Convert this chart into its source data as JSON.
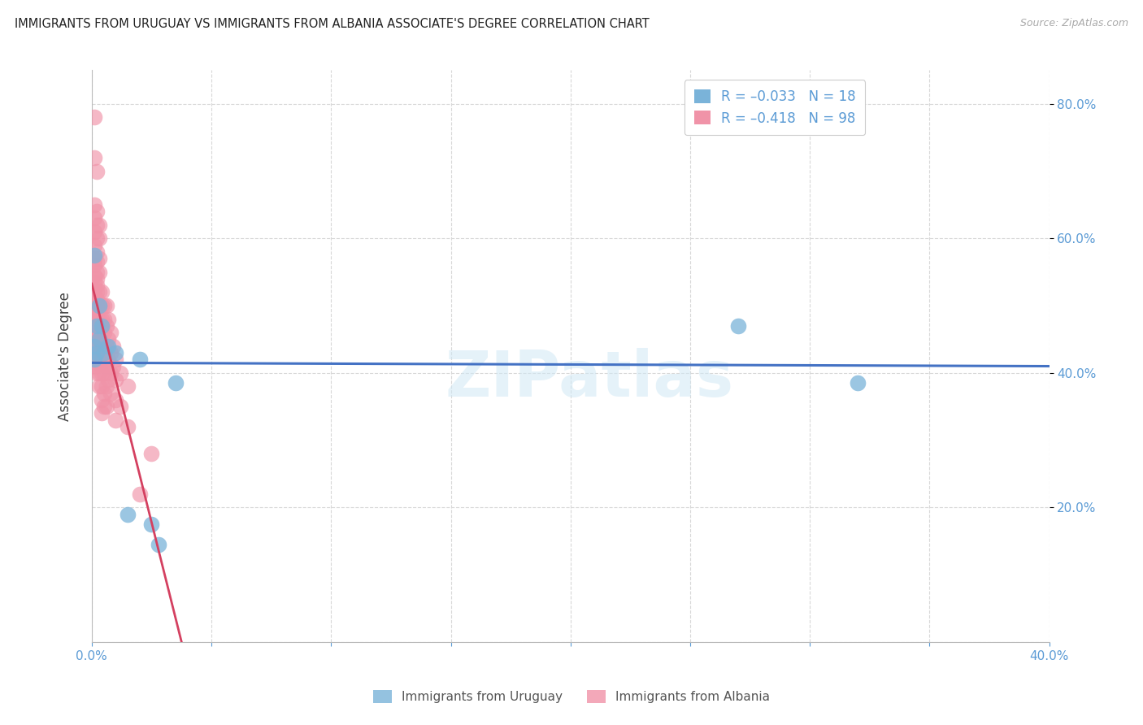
{
  "title": "IMMIGRANTS FROM URUGUAY VS IMMIGRANTS FROM ALBANIA ASSOCIATE'S DEGREE CORRELATION CHART",
  "source": "Source: ZipAtlas.com",
  "ylabel": "Associate's Degree",
  "xlim": [
    0.0,
    0.4
  ],
  "ylim": [
    0.0,
    0.85
  ],
  "xticks": [
    0.0,
    0.05,
    0.1,
    0.15,
    0.2,
    0.25,
    0.3,
    0.35,
    0.4
  ],
  "yticks": [
    0.0,
    0.2,
    0.4,
    0.6,
    0.8
  ],
  "watermark": "ZIPatlas",
  "uruguay_color": "#7ab3d9",
  "albania_color": "#f093a8",
  "uruguay_R": -0.033,
  "uruguay_N": 18,
  "albania_R": -0.418,
  "albania_N": 98,
  "uruguay_points": [
    [
      0.001,
      0.575
    ],
    [
      0.001,
      0.44
    ],
    [
      0.001,
      0.42
    ],
    [
      0.002,
      0.47
    ],
    [
      0.002,
      0.43
    ],
    [
      0.003,
      0.5
    ],
    [
      0.003,
      0.45
    ],
    [
      0.004,
      0.47
    ],
    [
      0.005,
      0.43
    ],
    [
      0.007,
      0.44
    ],
    [
      0.01,
      0.43
    ],
    [
      0.015,
      0.19
    ],
    [
      0.025,
      0.175
    ],
    [
      0.028,
      0.145
    ],
    [
      0.02,
      0.42
    ],
    [
      0.035,
      0.385
    ],
    [
      0.27,
      0.47
    ],
    [
      0.32,
      0.385
    ]
  ],
  "albania_points": [
    [
      0.001,
      0.78
    ],
    [
      0.001,
      0.72
    ],
    [
      0.002,
      0.7
    ],
    [
      0.001,
      0.65
    ],
    [
      0.002,
      0.64
    ],
    [
      0.001,
      0.63
    ],
    [
      0.002,
      0.62
    ],
    [
      0.001,
      0.61
    ],
    [
      0.002,
      0.6
    ],
    [
      0.001,
      0.59
    ],
    [
      0.002,
      0.58
    ],
    [
      0.001,
      0.57
    ],
    [
      0.002,
      0.565
    ],
    [
      0.001,
      0.56
    ],
    [
      0.002,
      0.55
    ],
    [
      0.001,
      0.545
    ],
    [
      0.002,
      0.54
    ],
    [
      0.001,
      0.535
    ],
    [
      0.002,
      0.53
    ],
    [
      0.001,
      0.525
    ],
    [
      0.002,
      0.52
    ],
    [
      0.001,
      0.515
    ],
    [
      0.002,
      0.51
    ],
    [
      0.001,
      0.505
    ],
    [
      0.002,
      0.5
    ],
    [
      0.001,
      0.495
    ],
    [
      0.002,
      0.49
    ],
    [
      0.001,
      0.485
    ],
    [
      0.002,
      0.48
    ],
    [
      0.001,
      0.475
    ],
    [
      0.002,
      0.47
    ],
    [
      0.001,
      0.46
    ],
    [
      0.002,
      0.455
    ],
    [
      0.001,
      0.45
    ],
    [
      0.002,
      0.44
    ],
    [
      0.001,
      0.44
    ],
    [
      0.002,
      0.435
    ],
    [
      0.001,
      0.43
    ],
    [
      0.002,
      0.425
    ],
    [
      0.001,
      0.42
    ],
    [
      0.002,
      0.415
    ],
    [
      0.001,
      0.41
    ],
    [
      0.002,
      0.4
    ],
    [
      0.003,
      0.62
    ],
    [
      0.003,
      0.6
    ],
    [
      0.003,
      0.57
    ],
    [
      0.003,
      0.55
    ],
    [
      0.003,
      0.52
    ],
    [
      0.003,
      0.5
    ],
    [
      0.003,
      0.48
    ],
    [
      0.003,
      0.46
    ],
    [
      0.003,
      0.44
    ],
    [
      0.003,
      0.42
    ],
    [
      0.003,
      0.4
    ],
    [
      0.003,
      0.38
    ],
    [
      0.004,
      0.52
    ],
    [
      0.004,
      0.5
    ],
    [
      0.004,
      0.48
    ],
    [
      0.004,
      0.46
    ],
    [
      0.004,
      0.44
    ],
    [
      0.004,
      0.42
    ],
    [
      0.004,
      0.4
    ],
    [
      0.004,
      0.38
    ],
    [
      0.004,
      0.36
    ],
    [
      0.004,
      0.34
    ],
    [
      0.005,
      0.5
    ],
    [
      0.005,
      0.48
    ],
    [
      0.005,
      0.46
    ],
    [
      0.005,
      0.44
    ],
    [
      0.005,
      0.42
    ],
    [
      0.005,
      0.4
    ],
    [
      0.005,
      0.37
    ],
    [
      0.005,
      0.35
    ],
    [
      0.006,
      0.5
    ],
    [
      0.006,
      0.47
    ],
    [
      0.006,
      0.44
    ],
    [
      0.006,
      0.41
    ],
    [
      0.006,
      0.38
    ],
    [
      0.006,
      0.35
    ],
    [
      0.007,
      0.48
    ],
    [
      0.007,
      0.45
    ],
    [
      0.007,
      0.42
    ],
    [
      0.007,
      0.39
    ],
    [
      0.008,
      0.46
    ],
    [
      0.008,
      0.43
    ],
    [
      0.008,
      0.4
    ],
    [
      0.008,
      0.37
    ],
    [
      0.009,
      0.44
    ],
    [
      0.009,
      0.41
    ],
    [
      0.01,
      0.42
    ],
    [
      0.01,
      0.39
    ],
    [
      0.01,
      0.36
    ],
    [
      0.01,
      0.33
    ],
    [
      0.012,
      0.4
    ],
    [
      0.012,
      0.35
    ],
    [
      0.015,
      0.38
    ],
    [
      0.015,
      0.32
    ],
    [
      0.02,
      0.22
    ],
    [
      0.025,
      0.28
    ]
  ],
  "grid_color": "#d8d8d8",
  "grid_linestyle": "--",
  "bg_color": "#ffffff",
  "trend_uruguay_color": "#4472c4",
  "trend_albania_solid_color": "#d44060",
  "trend_albania_ext_color": "#cccccc",
  "tick_color": "#5b9bd5",
  "legend_text_color": "#5b9bd5",
  "legend_border_color": "#cccccc"
}
